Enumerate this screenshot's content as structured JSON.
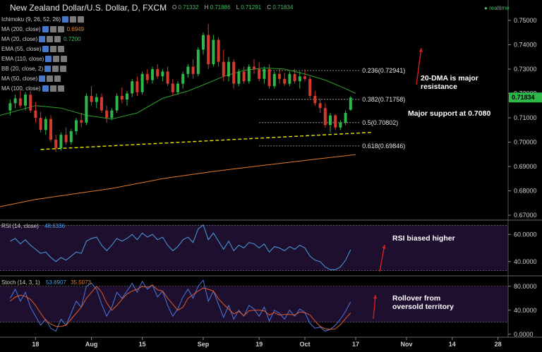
{
  "header": {
    "title": "New Zealand Dollar/U.S. Dollar, D, FXCM",
    "ohlc": [
      {
        "label": "O",
        "value": "0.71332"
      },
      {
        "label": "H",
        "value": "0.71886"
      },
      {
        "label": "L",
        "value": "0.71291"
      },
      {
        "label": "C",
        "value": "0.71834"
      }
    ],
    "realtime": "realtime"
  },
  "indicators": [
    {
      "label": "Ichimoku (9, 26, 52, 26)",
      "value1": "",
      "value2": ""
    },
    {
      "label": "MA (200, close)",
      "value1": "0.6949",
      "value2": ""
    },
    {
      "label": "MA (20, close)",
      "value1": "",
      "value2": "0.7200"
    },
    {
      "label": "EMA (55, close)",
      "value1": "",
      "value2": ""
    },
    {
      "label": "EMA (110, close)",
      "value1": "",
      "value2": ""
    },
    {
      "label": "BB (20, close, 2)",
      "value1": "",
      "value2": ""
    },
    {
      "label": "MA (50, close)",
      "value1": "",
      "value2": ""
    },
    {
      "label": "MA (100, close)",
      "value1": "",
      "value2": ""
    }
  ],
  "rsi_panel": {
    "label": "RSI (14, close)",
    "value": "48.6336"
  },
  "stoch_panel": {
    "label": "Stoch (14, 3, 1)",
    "value_k": "53.8907",
    "value_d": "35.5073"
  },
  "colors": {
    "background": "#000000",
    "up": "#2db84a",
    "down": "#d43a2f",
    "ma20": "#2ca02c",
    "ma200": "#e07a2a",
    "trendline": "#e6e600",
    "rsi": "#4aa0e0",
    "stoch_k": "#4a78e0",
    "stoch_d": "#e05a2a",
    "indicator_bg": "#1e0f2e",
    "annotation_arrow": "#d42020",
    "price_tag": "#2db84a"
  },
  "chart_data": [
    {
      "type": "candlestick",
      "title": "New Zealand Dollar/U.S. Dollar, D, FXCM",
      "ylim": [
        0.668,
        0.752
      ],
      "y_ticks": [
        "0.75000",
        "0.74000",
        "0.73000",
        "0.72000",
        "0.71000",
        "0.70000",
        "0.69000",
        "0.68000",
        "0.67000"
      ],
      "y_tick_values": [
        0.75,
        0.74,
        0.73,
        0.72,
        0.71,
        0.7,
        0.69,
        0.68,
        0.67
      ],
      "x_ticks": [
        {
          "label": "18",
          "index": 5
        },
        {
          "label": "Aug",
          "index": 16
        },
        {
          "label": "15",
          "index": 26
        },
        {
          "label": "Sep",
          "index": 38
        },
        {
          "label": "19",
          "index": 49
        },
        {
          "label": "Oct",
          "index": 58
        },
        {
          "label": "17",
          "index": 68
        },
        {
          "label": "Nov",
          "index": 78
        },
        {
          "label": "14",
          "index": 87
        },
        {
          "label": "28",
          "index": 96
        }
      ],
      "index_range": [
        -2,
        98
      ],
      "candles": [
        [
          0.713,
          0.7175,
          0.711,
          0.716
        ],
        [
          0.716,
          0.7195,
          0.714,
          0.718
        ],
        [
          0.718,
          0.721,
          0.714,
          0.715
        ],
        [
          0.715,
          0.7205,
          0.713,
          0.7195
        ],
        [
          0.7195,
          0.721,
          0.712,
          0.713
        ],
        [
          0.713,
          0.7165,
          0.708,
          0.71
        ],
        [
          0.71,
          0.7125,
          0.704,
          0.705
        ],
        [
          0.705,
          0.7105,
          0.703,
          0.7095
        ],
        [
          0.7095,
          0.711,
          0.7,
          0.701
        ],
        [
          0.701,
          0.703,
          0.696,
          0.6975
        ],
        [
          0.6975,
          0.704,
          0.6965,
          0.703
        ],
        [
          0.703,
          0.706,
          0.699,
          0.7
        ],
        [
          0.7,
          0.7055,
          0.699,
          0.7045
        ],
        [
          0.7045,
          0.71,
          0.703,
          0.709
        ],
        [
          0.709,
          0.712,
          0.706,
          0.708
        ],
        [
          0.708,
          0.72,
          0.707,
          0.719
        ],
        [
          0.719,
          0.723,
          0.715,
          0.7165
        ],
        [
          0.7165,
          0.72,
          0.714,
          0.7185
        ],
        [
          0.7185,
          0.72,
          0.712,
          0.713
        ],
        [
          0.713,
          0.715,
          0.708,
          0.71
        ],
        [
          0.71,
          0.714,
          0.709,
          0.713
        ],
        [
          0.713,
          0.72,
          0.712,
          0.719
        ],
        [
          0.719,
          0.7225,
          0.716,
          0.7175
        ],
        [
          0.7175,
          0.721,
          0.715,
          0.72
        ],
        [
          0.72,
          0.726,
          0.7185,
          0.725
        ],
        [
          0.725,
          0.727,
          0.719,
          0.7205
        ],
        [
          0.7205,
          0.729,
          0.7195,
          0.728
        ],
        [
          0.728,
          0.73,
          0.724,
          0.7255
        ],
        [
          0.7255,
          0.731,
          0.724,
          0.73
        ],
        [
          0.73,
          0.732,
          0.726,
          0.727
        ],
        [
          0.727,
          0.73,
          0.725,
          0.729
        ],
        [
          0.729,
          0.731,
          0.723,
          0.724
        ],
        [
          0.724,
          0.726,
          0.719,
          0.7205
        ],
        [
          0.7205,
          0.725,
          0.7195,
          0.724
        ],
        [
          0.724,
          0.729,
          0.722,
          0.728
        ],
        [
          0.728,
          0.732,
          0.7265,
          0.731
        ],
        [
          0.731,
          0.734,
          0.726,
          0.728
        ],
        [
          0.728,
          0.739,
          0.727,
          0.738
        ],
        [
          0.738,
          0.745,
          0.736,
          0.744
        ],
        [
          0.744,
          0.7485,
          0.73,
          0.732
        ],
        [
          0.732,
          0.744,
          0.731,
          0.742
        ],
        [
          0.742,
          0.743,
          0.731,
          0.733
        ],
        [
          0.733,
          0.738,
          0.725,
          0.727
        ],
        [
          0.727,
          0.735,
          0.725,
          0.733
        ],
        [
          0.733,
          0.734,
          0.722,
          0.724
        ],
        [
          0.724,
          0.73,
          0.723,
          0.729
        ],
        [
          0.729,
          0.731,
          0.724,
          0.725
        ],
        [
          0.725,
          0.732,
          0.724,
          0.731
        ],
        [
          0.731,
          0.734,
          0.728,
          0.73
        ],
        [
          0.73,
          0.733,
          0.725,
          0.726
        ],
        [
          0.726,
          0.731,
          0.724,
          0.73
        ],
        [
          0.73,
          0.732,
          0.722,
          0.723
        ],
        [
          0.723,
          0.729,
          0.722,
          0.728
        ],
        [
          0.728,
          0.73,
          0.724,
          0.726
        ],
        [
          0.726,
          0.7285,
          0.723,
          0.724
        ],
        [
          0.724,
          0.729,
          0.723,
          0.728
        ],
        [
          0.728,
          0.73,
          0.724,
          0.725
        ],
        [
          0.725,
          0.729,
          0.722,
          0.727
        ],
        [
          0.727,
          0.73,
          0.725,
          0.726
        ],
        [
          0.726,
          0.727,
          0.718,
          0.719
        ],
        [
          0.719,
          0.721,
          0.715,
          0.716
        ],
        [
          0.716,
          0.718,
          0.712,
          0.714
        ],
        [
          0.714,
          0.716,
          0.706,
          0.707
        ],
        [
          0.707,
          0.712,
          0.704,
          0.711
        ],
        [
          0.711,
          0.7115,
          0.705,
          0.706
        ],
        [
          0.706,
          0.709,
          0.705,
          0.708
        ],
        [
          0.708,
          0.713,
          0.707,
          0.712
        ],
        [
          0.7133,
          0.7189,
          0.7129,
          0.7183
        ]
      ],
      "series": [
        {
          "name": "MA (20, close)",
          "x": [
            -2,
            5,
            10,
            15,
            20,
            25,
            30,
            35,
            38,
            42,
            46,
            50,
            54,
            58,
            62,
            66,
            68
          ],
          "values": [
            0.711,
            0.715,
            0.714,
            0.711,
            0.7095,
            0.712,
            0.718,
            0.721,
            0.7235,
            0.727,
            0.7295,
            0.7305,
            0.73,
            0.728,
            0.7255,
            0.722,
            0.72
          ]
        },
        {
          "name": "MA (200, close)",
          "x": [
            -2,
            5,
            10,
            20,
            30,
            40,
            50,
            60,
            68
          ],
          "values": [
            0.6735,
            0.6765,
            0.678,
            0.681,
            0.685,
            0.688,
            0.6905,
            0.693,
            0.6949
          ]
        }
      ],
      "trendline": {
        "x": [
          6,
          71
        ],
        "values": [
          0.697,
          0.704
        ]
      },
      "fib_levels": [
        {
          "label": "0.236(0.72941)",
          "value": 0.72941
        },
        {
          "label": "0.382(0.71758)",
          "value": 0.71758
        },
        {
          "label": "0.5(0.70802)",
          "value": 0.70802
        },
        {
          "label": "0.618(0.69846)",
          "value": 0.69846
        }
      ],
      "last_price_label": "0.71834",
      "last_price": 0.71834,
      "annotations": [
        {
          "text": "20-DMA is major resistance",
          "lines": [
            "20-DMA is major",
            "resistance"
          ]
        },
        {
          "text": "Major support at 0.7080",
          "lines": [
            "Major support at 0.7080"
          ]
        }
      ]
    },
    {
      "type": "line",
      "title": "RSI (14, close)",
      "ylim": [
        30,
        70
      ],
      "y_ticks": [
        "60.0000",
        "40.0000"
      ],
      "y_tick_values": [
        60,
        40
      ],
      "bands": [
        66.7,
        33.3
      ],
      "series": [
        {
          "name": "RSI (14, close)",
          "values": [
            55,
            57,
            53,
            56,
            52,
            49,
            46,
            47,
            43,
            40,
            43,
            41,
            44,
            47,
            46,
            55,
            57,
            58,
            52,
            48,
            52,
            57,
            55,
            57,
            60,
            56,
            61,
            58,
            60,
            56,
            58,
            52,
            48,
            51,
            56,
            58,
            54,
            64,
            67,
            56,
            61,
            55,
            49,
            55,
            48,
            52,
            50,
            54,
            53,
            50,
            53,
            47,
            51,
            50,
            48,
            51,
            49,
            52,
            50,
            44,
            41,
            40,
            36,
            34,
            34,
            36,
            41,
            48.6336
          ]
        }
      ],
      "annotations": [
        {
          "text": "RSI biased higher",
          "lines": [
            "RSI biased higher"
          ]
        }
      ]
    },
    {
      "type": "line",
      "title": "Stoch (14, 3, 1)",
      "ylim": [
        -5,
        95
      ],
      "y_ticks": [
        "80.0000",
        "40.0000",
        "0.0000"
      ],
      "y_tick_values": [
        80,
        40,
        0
      ],
      "bands": [
        80,
        20
      ],
      "series": [
        {
          "name": "%K",
          "values": [
            60,
            75,
            55,
            70,
            45,
            30,
            15,
            25,
            10,
            5,
            25,
            15,
            35,
            55,
            45,
            80,
            85,
            75,
            50,
            30,
            45,
            70,
            60,
            72,
            85,
            70,
            88,
            75,
            82,
            62,
            72,
            48,
            30,
            42,
            62,
            75,
            60,
            80,
            90,
            55,
            72,
            50,
            28,
            48,
            25,
            40,
            30,
            48,
            42,
            30,
            45,
            22,
            40,
            35,
            25,
            40,
            30,
            42,
            36,
            18,
            10,
            12,
            5,
            8,
            15,
            25,
            38,
            53.8907
          ]
        },
        {
          "name": "%D",
          "values": [
            55,
            62,
            65,
            63,
            58,
            48,
            35,
            23,
            17,
            13,
            13,
            15,
            25,
            35,
            45,
            60,
            70,
            80,
            70,
            52,
            40,
            48,
            58,
            67,
            72,
            75,
            80,
            78,
            82,
            74,
            72,
            60,
            50,
            40,
            45,
            60,
            66,
            72,
            77,
            75,
            72,
            59,
            50,
            42,
            34,
            38,
            31,
            39,
            40,
            40,
            39,
            32,
            36,
            32,
            33,
            33,
            32,
            37,
            36,
            32,
            22,
            13,
            9,
            8,
            9,
            16,
            26,
            35.5073
          ]
        }
      ],
      "annotations": [
        {
          "text": "Rollover from oversold territory",
          "lines": [
            "Rollover from",
            "oversold territory"
          ]
        }
      ]
    }
  ]
}
